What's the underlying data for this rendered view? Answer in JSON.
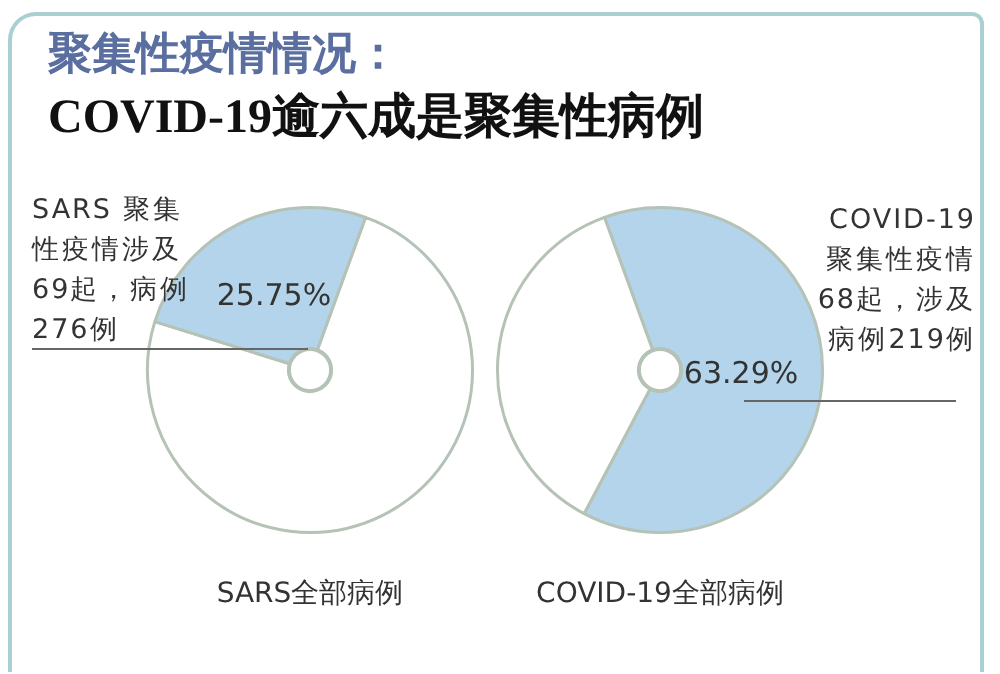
{
  "chart_data": [
    {
      "type": "donut",
      "title": "聚集性疫情情况：",
      "subtitle": "COVID-19逾六成是聚集性病例",
      "xlabel": "SARS全部病例",
      "categories": [
        null,
        null
      ],
      "values": [
        74.25,
        25.75
      ],
      "colors": [
        "#ffffff",
        "#b3d4ea"
      ],
      "value_labels": [
        null,
        "25.75%"
      ],
      "annotations": [
        "SARS 聚集性疫情涉及69起，病例276例"
      ]
    },
    {
      "type": "donut",
      "xlabel": "COVID-19全部病例",
      "categories": [
        null,
        null
      ],
      "values": [
        63.29,
        36.71
      ],
      "colors": [
        "#b3d4ea",
        "#ffffff"
      ],
      "value_labels": [
        "63.29%",
        null
      ],
      "annotations": [
        "COVID-19聚集性疫情68起，涉及病例219例"
      ]
    }
  ]
}
